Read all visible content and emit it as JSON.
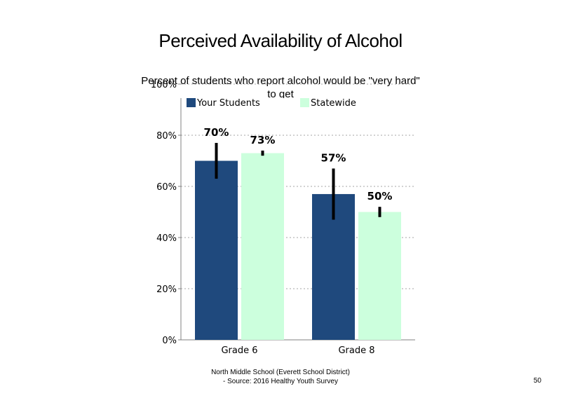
{
  "title": "Perceived Availability of Alcohol",
  "subtitle": "Percent of students who report alcohol would be \"very hard\" to get",
  "footer": {
    "line1": "North Middle School (Everett School District)",
    "line2": "- Source: 2016 Healthy Youth Survey"
  },
  "page_number": "50",
  "colors": {
    "your_students": "#1F497D",
    "statewide": "#CCFFDD",
    "error_bar": "#000000",
    "gridline": "#A6A6A6",
    "axis": "#808080"
  },
  "chart_data": {
    "type": "bar",
    "title": "Perceived Availability of Alcohol",
    "subtitle": "Percent of students who report alcohol would be \"very hard\" to get",
    "categories": [
      "Grade 6",
      "Grade 8"
    ],
    "series": [
      {
        "name": "Your Students",
        "color": "#1F497D",
        "values": [
          70,
          57
        ],
        "labels": [
          "70%",
          "57%"
        ],
        "error_low": [
          63,
          47
        ],
        "error_high": [
          77,
          67
        ]
      },
      {
        "name": "Statewide",
        "color": "#CCFFDD",
        "values": [
          73,
          50
        ],
        "labels": [
          "73%",
          "50%"
        ],
        "error_low": [
          72,
          48
        ],
        "error_high": [
          74,
          52
        ]
      }
    ],
    "ylim": [
      0,
      100
    ],
    "yticks": [
      0,
      20,
      40,
      60,
      80,
      100
    ],
    "ytick_labels": [
      "0%",
      "20%",
      "40%",
      "60%",
      "80%",
      "100%"
    ],
    "gridlines": "dotted horizontal",
    "legend_position": "top"
  }
}
